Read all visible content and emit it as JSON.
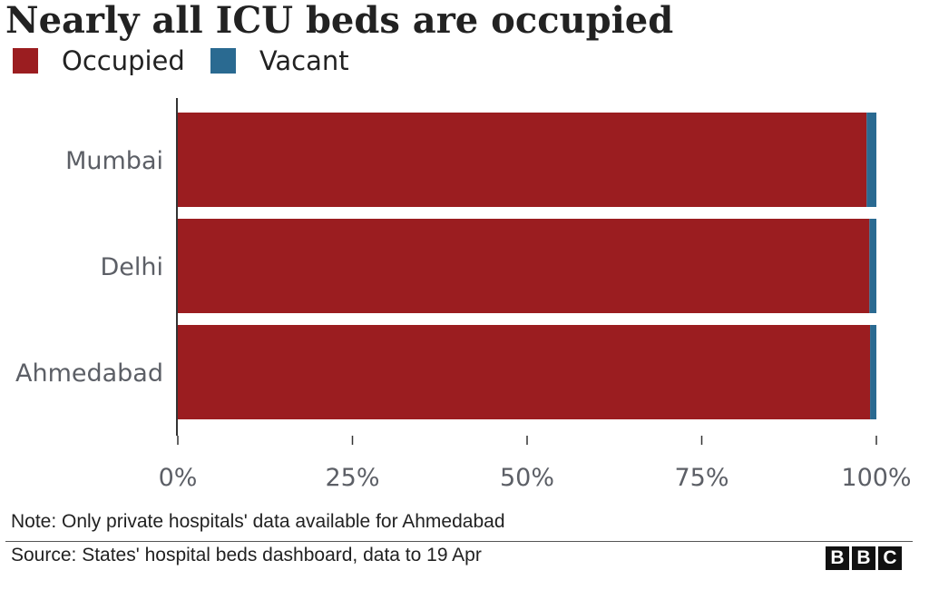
{
  "title": "Nearly all ICU beds are occupied",
  "legend": {
    "occupied_label": "Occupied",
    "vacant_label": "Vacant"
  },
  "colors": {
    "occupied": "#9b1d20",
    "vacant": "#2a6a91",
    "axis_text": "#5c5f66"
  },
  "chart_data": {
    "type": "bar",
    "orientation": "horizontal",
    "stacked": true,
    "title": "Nearly all ICU beds are occupied",
    "categories": [
      "Mumbai",
      "Delhi",
      "Ahmedabad"
    ],
    "series": [
      {
        "name": "Occupied",
        "values": [
          98.6,
          99.0,
          99.1
        ]
      },
      {
        "name": "Vacant",
        "values": [
          1.4,
          1.0,
          0.9
        ]
      }
    ],
    "xlim": [
      0,
      100
    ],
    "xticks": [
      0,
      25,
      50,
      75,
      100
    ],
    "xtick_labels": [
      "0%",
      "25%",
      "50%",
      "75%",
      "100%"
    ],
    "xlabel": "",
    "ylabel": "",
    "grid": false,
    "legend_position": "top-left"
  },
  "note": "Note: Only private hospitals' data available for Ahmedabad",
  "source": "Source: States' hospital beds dashboard, data to 19 Apr",
  "logo": {
    "letters": [
      "B",
      "B",
      "C"
    ]
  }
}
